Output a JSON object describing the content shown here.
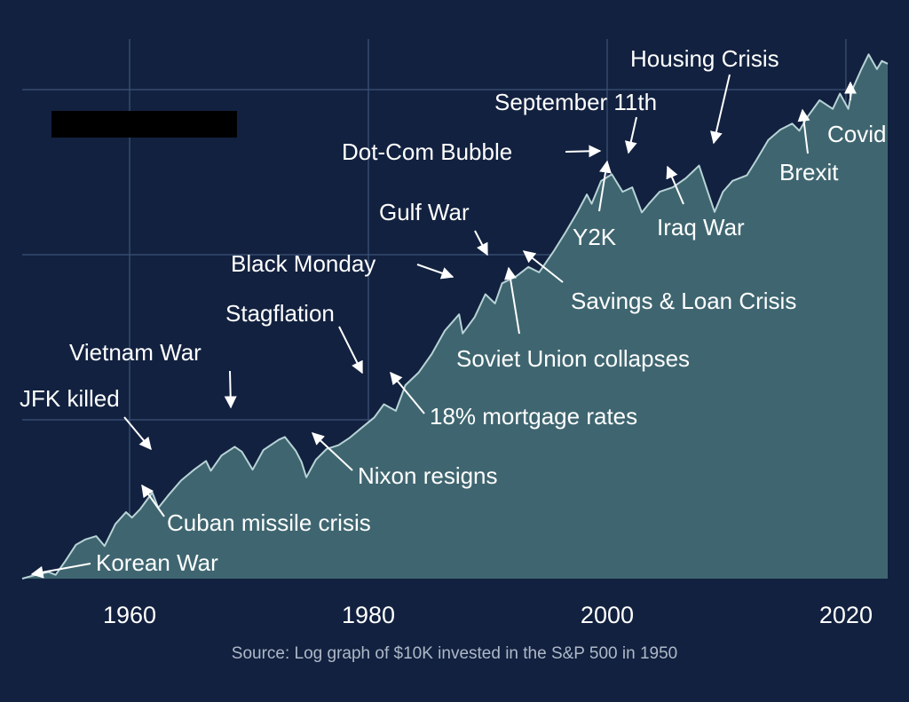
{
  "colors": {
    "background": "#12213f",
    "area_fill": "#3f6670",
    "line": "#b7d3d6",
    "grid": "#3d5479",
    "text": "#ffffff",
    "source_text": "#aeb8c8",
    "redaction": "#000000"
  },
  "source": "Source: Log graph of $10K invested in the S&P 500 in 1950",
  "chart_data": {
    "type": "area",
    "title": "",
    "xlabel": "",
    "ylabel": "",
    "xlim": [
      1951,
      2023.5
    ],
    "x_ticks": [
      1960,
      1980,
      2000,
      2020
    ],
    "x_tick_labels": [
      "1960",
      "1980",
      "2000",
      "2020"
    ],
    "y_scale": "log",
    "y_ticks_shown": false,
    "grid": true,
    "legend": "none",
    "series": [
      {
        "points": [
          [
            1951.0,
            0.0
          ],
          [
            1952.3,
            0.08
          ],
          [
            1953.2,
            0.12
          ],
          [
            1953.8,
            0.07
          ],
          [
            1954.6,
            0.32
          ],
          [
            1955.5,
            0.62
          ],
          [
            1956.3,
            0.72
          ],
          [
            1957.2,
            0.78
          ],
          [
            1957.9,
            0.6
          ],
          [
            1958.8,
            1.0
          ],
          [
            1959.7,
            1.22
          ],
          [
            1960.2,
            1.12
          ],
          [
            1960.9,
            1.28
          ],
          [
            1961.9,
            1.58
          ],
          [
            1962.4,
            1.3
          ],
          [
            1963.2,
            1.52
          ],
          [
            1964.3,
            1.8
          ],
          [
            1965.4,
            2.0
          ],
          [
            1966.4,
            2.16
          ],
          [
            1966.8,
            1.98
          ],
          [
            1967.7,
            2.26
          ],
          [
            1968.8,
            2.42
          ],
          [
            1969.4,
            2.33
          ],
          [
            1970.3,
            2.0
          ],
          [
            1971.2,
            2.36
          ],
          [
            1972.5,
            2.55
          ],
          [
            1973.0,
            2.6
          ],
          [
            1973.9,
            2.35
          ],
          [
            1974.4,
            2.14
          ],
          [
            1974.8,
            1.86
          ],
          [
            1975.6,
            2.18
          ],
          [
            1976.5,
            2.38
          ],
          [
            1977.5,
            2.45
          ],
          [
            1978.4,
            2.58
          ],
          [
            1979.5,
            2.78
          ],
          [
            1980.5,
            2.96
          ],
          [
            1981.3,
            3.2
          ],
          [
            1982.3,
            3.08
          ],
          [
            1983.1,
            3.55
          ],
          [
            1984.2,
            3.78
          ],
          [
            1985.3,
            4.12
          ],
          [
            1986.4,
            4.55
          ],
          [
            1987.6,
            4.85
          ],
          [
            1987.9,
            4.5
          ],
          [
            1988.9,
            4.8
          ],
          [
            1989.8,
            5.22
          ],
          [
            1990.6,
            5.05
          ],
          [
            1991.2,
            5.42
          ],
          [
            1992.4,
            5.55
          ],
          [
            1993.4,
            5.72
          ],
          [
            1994.3,
            5.62
          ],
          [
            1995.5,
            6.0
          ],
          [
            1996.5,
            6.35
          ],
          [
            1997.5,
            6.72
          ],
          [
            1998.3,
            7.05
          ],
          [
            1998.7,
            6.88
          ],
          [
            1999.5,
            7.3
          ],
          [
            2000.4,
            7.42
          ],
          [
            2001.3,
            7.1
          ],
          [
            2002.1,
            7.18
          ],
          [
            2002.9,
            6.72
          ],
          [
            2003.5,
            6.88
          ],
          [
            2004.4,
            7.1
          ],
          [
            2005.5,
            7.18
          ],
          [
            2006.6,
            7.35
          ],
          [
            2007.7,
            7.58
          ],
          [
            2008.5,
            7.05
          ],
          [
            2009.0,
            6.73
          ],
          [
            2009.7,
            7.1
          ],
          [
            2010.5,
            7.3
          ],
          [
            2011.7,
            7.4
          ],
          [
            2012.5,
            7.68
          ],
          [
            2013.5,
            8.05
          ],
          [
            2014.5,
            8.24
          ],
          [
            2015.5,
            8.35
          ],
          [
            2016.1,
            8.22
          ],
          [
            2016.8,
            8.48
          ],
          [
            2017.8,
            8.78
          ],
          [
            2018.9,
            8.62
          ],
          [
            2019.5,
            8.9
          ],
          [
            2020.2,
            8.62
          ],
          [
            2020.5,
            8.96
          ],
          [
            2021.3,
            9.35
          ],
          [
            2021.9,
            9.62
          ],
          [
            2022.6,
            9.35
          ],
          [
            2023.0,
            9.5
          ],
          [
            2023.5,
            9.45
          ]
        ]
      }
    ],
    "annotations": [
      {
        "text": "Korean War",
        "year": 1952.0
      },
      {
        "text": "Cuban missile crisis",
        "year": 1960.8
      },
      {
        "text": "JFK killed",
        "year": 1962.3
      },
      {
        "text": "Vietnam War",
        "year": 1968.5
      },
      {
        "text": "Nixon resigns",
        "year": 1974.5
      },
      {
        "text": "Stagflation",
        "year": 1979.5
      },
      {
        "text": "18% mortgage rates",
        "year": 1982.0
      },
      {
        "text": "Black Monday",
        "year": 1987.5
      },
      {
        "text": "Gulf War",
        "year": 1990.6
      },
      {
        "text": "Soviet Union collapses",
        "year": 1991.6
      },
      {
        "text": "Savings & Loan Crisis",
        "year": 1993.3
      },
      {
        "text": "Dot-Com Bubble",
        "year": 2000.0
      },
      {
        "text": "Y2K",
        "year": 2000.0
      },
      {
        "text": "September 11th",
        "year": 2001.8
      },
      {
        "text": "Iraq War",
        "year": 2003.2
      },
      {
        "text": "Housing Crisis",
        "year": 2008.9
      },
      {
        "text": "Brexit",
        "year": 2016.2
      },
      {
        "text": "Covid",
        "year": 2020.2
      }
    ]
  }
}
